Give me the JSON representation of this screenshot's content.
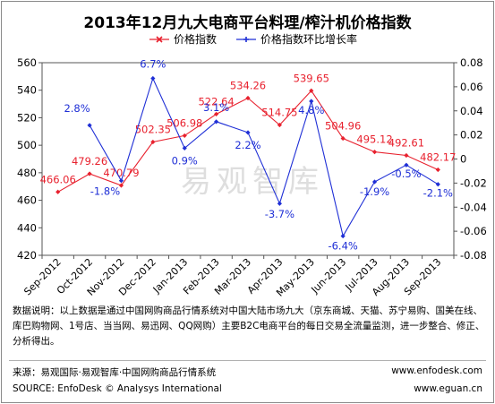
{
  "title": "2013年12月九大电商平台料理/榨汁机价格指数",
  "chart_data": {
    "type": "line",
    "title": "2013年12月九大电商平台料理/榨汁机价格指数",
    "categories": [
      "Sep-2012",
      "Oct-2012",
      "Nov-2012",
      "Dec-2012",
      "Jan-2013",
      "Feb-2013",
      "Mar-2013",
      "Apr-2013",
      "May-2013",
      "Jun-2013",
      "Jul-2013",
      "Aug-2013",
      "Sep-2013"
    ],
    "series": [
      {
        "name": "价格指数",
        "axis": "left",
        "color": "#e8212e",
        "values": [
          466.06,
          479.26,
          470.79,
          502.35,
          506.98,
          522.64,
          534.26,
          514.75,
          539.65,
          504.96,
          495.12,
          492.61,
          482.17
        ],
        "labels": [
          "466.06",
          "479.26",
          "470.79",
          "502.35",
          "506.98",
          "522.64",
          "534.26",
          "514.75",
          "539.65",
          "504.96",
          "495.12",
          "492.61",
          "482.17"
        ]
      },
      {
        "name": "价格指数环比增长率",
        "axis": "right",
        "color": "#1f2fd6",
        "values": [
          null,
          0.028,
          -0.018,
          0.067,
          0.009,
          0.031,
          0.022,
          -0.037,
          0.048,
          -0.064,
          -0.019,
          -0.005,
          -0.021
        ],
        "labels": [
          "",
          "2.8%",
          "-1.8%",
          "6.7%",
          "0.9%",
          "3.1%",
          "2.2%",
          "-3.7%",
          "4.8%",
          "-6.4%",
          "-1.9%",
          "-0.5%",
          "-2.1%"
        ]
      }
    ],
    "ylim_left": [
      420,
      560
    ],
    "yticks_left": [
      "420",
      "440",
      "460",
      "480",
      "500",
      "520",
      "540",
      "560"
    ],
    "ylim_right": [
      -0.08,
      0.08
    ],
    "yticks_right": [
      "-0.08",
      "-0.06",
      "-0.04",
      "-0.02",
      "0",
      "0.02",
      "0.04",
      "0.06",
      "0.08"
    ],
    "grid": false,
    "legend": "top"
  },
  "watermark": "易观智库",
  "note": "数据说明：以上数据是通过中国网购商品行情系统对中国大陆市场九大（京东商城、天猫、苏宁易购、国美在线、库巴购物网、1号店、当当网、易迅网、QQ网购）主要B2C电商平台的每日交易全流量监测，进一步整合、修正、分析得出。",
  "footer": {
    "source_cn": "来源：易观国际·易观智库·中国网购商品行情系统",
    "source_en": "SOURCE: EnfoDesk © Analysys International",
    "url_1": "www.enfodesk.com",
    "url_2": "www.eguan.cn"
  }
}
